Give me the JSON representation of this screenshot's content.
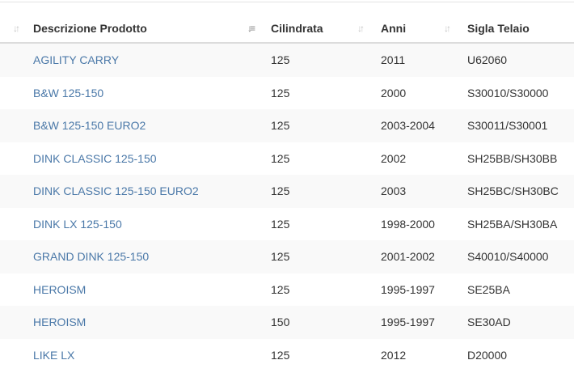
{
  "table": {
    "columns": [
      {
        "label": "Descrizione Prodotto",
        "sort_icon": "sort-both-icon"
      },
      {
        "label": "Cilindrata",
        "sort_icon": "sort-ascending-active-icon"
      },
      {
        "label": "Anni",
        "sort_icon": "sort-both-icon"
      },
      {
        "label": "Sigla Telaio",
        "sort_icon": "sort-both-icon"
      }
    ],
    "rows": [
      {
        "descrizione": "AGILITY CARRY",
        "cilindrata": "125",
        "anni": "2011",
        "sigla": "U62060"
      },
      {
        "descrizione": "B&W 125-150",
        "cilindrata": "125",
        "anni": "2000",
        "sigla": "S30010/S30000"
      },
      {
        "descrizione": "B&W 125-150 EURO2",
        "cilindrata": "125",
        "anni": "2003-2004",
        "sigla": "S30011/S30001"
      },
      {
        "descrizione": "DINK CLASSIC 125-150",
        "cilindrata": "125",
        "anni": "2002",
        "sigla": "SH25BB/SH30BB"
      },
      {
        "descrizione": "DINK CLASSIC 125-150 EURO2",
        "cilindrata": "125",
        "anni": "2003",
        "sigla": "SH25BC/SH30BC"
      },
      {
        "descrizione": "DINK LX 125-150",
        "cilindrata": "125",
        "anni": "1998-2000",
        "sigla": "SH25BA/SH30BA"
      },
      {
        "descrizione": "GRAND DINK 125-150",
        "cilindrata": "125",
        "anni": "2001-2002",
        "sigla": "S40010/S40000"
      },
      {
        "descrizione": "HEROISM",
        "cilindrata": "125",
        "anni": "1995-1997",
        "sigla": "SE25BA"
      },
      {
        "descrizione": "HEROISM",
        "cilindrata": "150",
        "anni": "1995-1997",
        "sigla": "SE30AD"
      },
      {
        "descrizione": "LIKE LX",
        "cilindrata": "125",
        "anni": "2012",
        "sigla": "D20000"
      }
    ]
  },
  "colors": {
    "link": "#4a78a8",
    "stripe": "#f9f9f9",
    "header_border": "#dcdcdc"
  }
}
